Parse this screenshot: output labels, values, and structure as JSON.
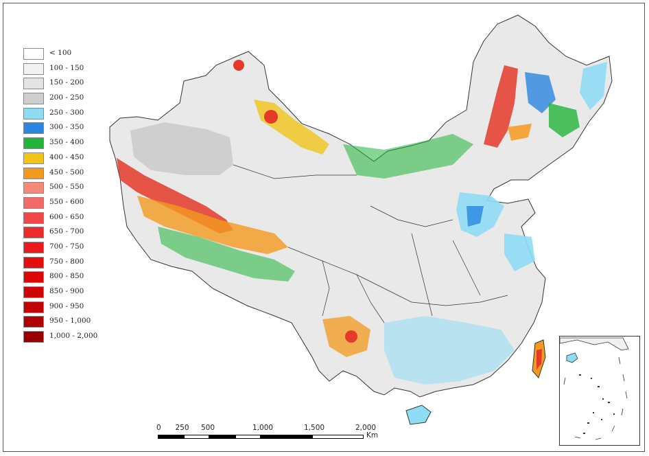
{
  "legend": {
    "items": [
      {
        "label": "< 100",
        "color": "#ffffff"
      },
      {
        "label": "100 - 150",
        "color": "#f2f2f2"
      },
      {
        "label": "150 - 200",
        "color": "#e4e4e4"
      },
      {
        "label": "200 - 250",
        "color": "#cfcfcf"
      },
      {
        "label": "250 - 300",
        "color": "#8fdcf5"
      },
      {
        "label": "300 - 350",
        "color": "#2a86e0"
      },
      {
        "label": "350 - 400",
        "color": "#23b43a"
      },
      {
        "label": "400 - 450",
        "color": "#f0c419"
      },
      {
        "label": "450 - 500",
        "color": "#f39a1e"
      },
      {
        "label": "500 - 550",
        "color": "#f38a7a"
      },
      {
        "label": "550 - 600",
        "color": "#f26a6a"
      },
      {
        "label": "600 - 650",
        "color": "#f04848"
      },
      {
        "label": "650 - 700",
        "color": "#ee2b2b"
      },
      {
        "label": "700 - 750",
        "color": "#ea1a1a"
      },
      {
        "label": "750 - 800",
        "color": "#e50e0e"
      },
      {
        "label": "800 - 850",
        "color": "#dc0606"
      },
      {
        "label": "850 - 900",
        "color": "#cf0404"
      },
      {
        "label": "900 - 950",
        "color": "#c00303"
      },
      {
        "label": "950 - 1,000",
        "color": "#b00202"
      },
      {
        "label": "1,000 - 2,000",
        "color": "#9a0000"
      }
    ]
  },
  "scale": {
    "ticks": [
      "0",
      "250",
      "500",
      "1,000",
      "1,500",
      "2,000"
    ],
    "unit": "Km"
  }
}
